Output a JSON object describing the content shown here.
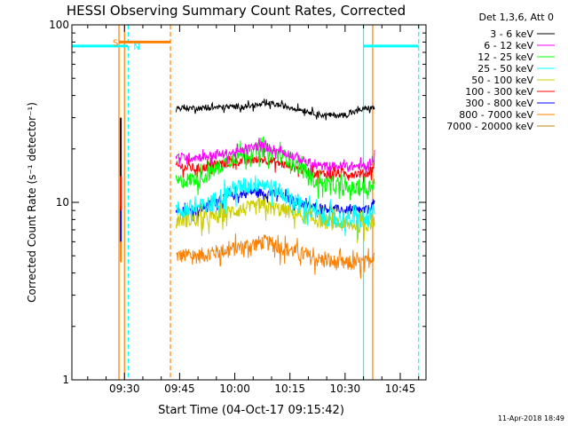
{
  "chart_data": {
    "type": "line",
    "title": "HESSI Observing Summary Count Rates, Corrected",
    "xlabel": "Start Time (04-Oct-17 09:15:42)",
    "ylabel": "Corrected Count Rate (s⁻¹ detector⁻¹)",
    "y_scale": "log",
    "ylim": [
      1,
      100
    ],
    "xlim": [
      "09:15:42",
      "10:52:00"
    ],
    "x_ticks": [
      "09:30",
      "09:45",
      "10:00",
      "10:15",
      "10:30",
      "10:45"
    ],
    "y_ticks": [
      "1",
      "10",
      "100"
    ],
    "legend_title": "Det 1,3,6, Att 0",
    "legend_position": "top-right",
    "footer_date": "11-Apr-2018 18:49",
    "markers": [
      {
        "label": "S",
        "color": "#ff8000",
        "from": "09:28:30",
        "to": "09:42:30",
        "style": "solid",
        "y": 80
      },
      {
        "label": "N",
        "color": "#00ffff",
        "from": "09:15:42",
        "to": "09:31:00",
        "style": "solid",
        "y": 76
      },
      {
        "label": "",
        "color": "#00ffff",
        "from": "10:35:00",
        "to": "10:50:00",
        "style": "solid",
        "y": 76
      }
    ],
    "vlines": [
      {
        "time": "09:28:30",
        "color": "#ff8000",
        "style": "solid"
      },
      {
        "time": "09:30:00",
        "color": "#ff8000",
        "style": "solid"
      },
      {
        "time": "09:31:00",
        "color": "#00ffff",
        "style": "dash"
      },
      {
        "time": "09:42:30",
        "color": "#ff8000",
        "style": "dash"
      },
      {
        "time": "10:35:00",
        "color": "#00ffff",
        "style": "solid"
      },
      {
        "time": "10:37:30",
        "color": "#ff8000",
        "style": "solid"
      },
      {
        "time": "10:50:00",
        "color": "#00ffff",
        "style": "dash"
      }
    ],
    "series": [
      {
        "name": "3 - 6 keV",
        "color": "#000000",
        "noise": 0.035,
        "points": [
          [
            "09:44:00",
            34
          ],
          [
            "09:52:00",
            34
          ],
          [
            "10:05:00",
            35
          ],
          [
            "10:10:00",
            36
          ],
          [
            "10:16:00",
            34
          ],
          [
            "10:24:00",
            31
          ],
          [
            "10:30:00",
            31
          ],
          [
            "10:36:00",
            34
          ],
          [
            "10:38:00",
            34
          ]
        ]
      },
      {
        "name": "6 - 12 keV",
        "color": "#ff00ff",
        "noise": 0.06,
        "points": [
          [
            "09:44:00",
            18
          ],
          [
            "09:50:00",
            18
          ],
          [
            "10:00:00",
            19
          ],
          [
            "10:07:00",
            21
          ],
          [
            "10:14:00",
            19
          ],
          [
            "10:22:00",
            16
          ],
          [
            "10:30:00",
            16
          ],
          [
            "10:36:00",
            16
          ],
          [
            "10:38:00",
            18
          ]
        ]
      },
      {
        "name": "12 - 25 keV",
        "color": "#00ff00",
        "noise": 0.1,
        "points": [
          [
            "09:44:00",
            13
          ],
          [
            "09:52:00",
            14
          ],
          [
            "10:00:00",
            18
          ],
          [
            "10:07:00",
            20
          ],
          [
            "10:14:00",
            18
          ],
          [
            "10:22:00",
            13
          ],
          [
            "10:30:00",
            12
          ],
          [
            "10:36:00",
            12
          ],
          [
            "10:38:00",
            13
          ]
        ]
      },
      {
        "name": "25 - 50 keV",
        "color": "#00ffff",
        "noise": 0.12,
        "points": [
          [
            "09:44:00",
            9
          ],
          [
            "09:52:00",
            9.5
          ],
          [
            "10:00:00",
            12
          ],
          [
            "10:07:00",
            13
          ],
          [
            "10:14:00",
            11
          ],
          [
            "10:22:00",
            8.5
          ],
          [
            "10:30:00",
            8
          ],
          [
            "10:36:00",
            8
          ],
          [
            "10:38:00",
            9
          ]
        ]
      },
      {
        "name": "50 - 100 keV",
        "color": "#cccc00",
        "noise": 0.1,
        "points": [
          [
            "09:44:00",
            8
          ],
          [
            "09:52:00",
            8
          ],
          [
            "10:00:00",
            9
          ],
          [
            "10:07:00",
            9.5
          ],
          [
            "10:14:00",
            9
          ],
          [
            "10:22:00",
            8
          ],
          [
            "10:30:00",
            7.5
          ],
          [
            "10:36:00",
            7.5
          ],
          [
            "10:38:00",
            8
          ]
        ]
      },
      {
        "name": "100 - 300 keV",
        "color": "#ff0000",
        "noise": 0.06,
        "points": [
          [
            "09:44:00",
            16
          ],
          [
            "09:50:00",
            15.5
          ],
          [
            "10:00:00",
            17
          ],
          [
            "10:08:00",
            17.5
          ],
          [
            "10:15:00",
            16
          ],
          [
            "10:22:00",
            14.5
          ],
          [
            "10:30:00",
            14.5
          ],
          [
            "10:36:00",
            14.5
          ],
          [
            "10:38:00",
            16
          ]
        ]
      },
      {
        "name": "300 - 800 keV",
        "color": "#0000ff",
        "noise": 0.06,
        "points": [
          [
            "09:44:00",
            9
          ],
          [
            "09:50:00",
            9
          ],
          [
            "09:56:00",
            10.5
          ],
          [
            "10:05:00",
            11.5
          ],
          [
            "10:12:00",
            11
          ],
          [
            "10:20:00",
            9.5
          ],
          [
            "10:30:00",
            9
          ],
          [
            "10:36:00",
            9
          ],
          [
            "10:38:00",
            10
          ]
        ]
      },
      {
        "name": "800 - 7000 keV",
        "color": "#ff8000",
        "noise": 0.1,
        "points": [
          [
            "09:44:00",
            5
          ],
          [
            "09:50:00",
            5
          ],
          [
            "10:00:00",
            5.5
          ],
          [
            "10:08:00",
            6
          ],
          [
            "10:14:00",
            5.5
          ],
          [
            "10:22:00",
            4.8
          ],
          [
            "10:30:00",
            4.5
          ],
          [
            "10:36:00",
            4.6
          ],
          [
            "10:38:00",
            5.2
          ]
        ]
      },
      {
        "name": "7000 - 20000 keV",
        "color": "#b8860b",
        "noise": 0.06,
        "points": []
      }
    ]
  }
}
